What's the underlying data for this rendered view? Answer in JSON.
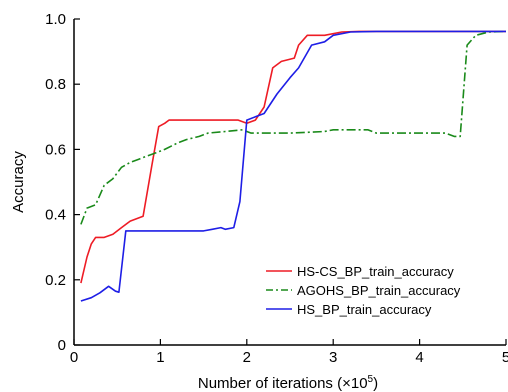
{
  "chart_data": {
    "type": "line",
    "xlabel": "Number of iterations (×10",
    "xlabel_exponent": "5",
    "xlabel_suffix": ")",
    "ylabel": "Accuracy",
    "xlim": [
      0,
      5
    ],
    "ylim": [
      0,
      1.0
    ],
    "x_ticks": [
      "0",
      "1",
      "2",
      "3",
      "4",
      "5"
    ],
    "y_ticks": [
      "0",
      "0.2",
      "0.4",
      "0.6",
      "0.8",
      "1.0"
    ],
    "grid": false,
    "legend_position": "bottom-right",
    "series": [
      {
        "name": "HS-CS_BP_train_accuracy",
        "color": "#ee1c25",
        "style": "solid",
        "points": [
          [
            0.08,
            0.19
          ],
          [
            0.15,
            0.27
          ],
          [
            0.2,
            0.31
          ],
          [
            0.25,
            0.33
          ],
          [
            0.35,
            0.33
          ],
          [
            0.45,
            0.34
          ],
          [
            0.55,
            0.36
          ],
          [
            0.65,
            0.38
          ],
          [
            0.75,
            0.39
          ],
          [
            0.8,
            0.395
          ],
          [
            0.9,
            0.55
          ],
          [
            0.98,
            0.67
          ],
          [
            1.05,
            0.68
          ],
          [
            1.1,
            0.69
          ],
          [
            1.5,
            0.69
          ],
          [
            1.9,
            0.69
          ],
          [
            2.0,
            0.68
          ],
          [
            2.1,
            0.69
          ],
          [
            2.2,
            0.73
          ],
          [
            2.3,
            0.85
          ],
          [
            2.4,
            0.87
          ],
          [
            2.55,
            0.88
          ],
          [
            2.6,
            0.92
          ],
          [
            2.7,
            0.95
          ],
          [
            2.9,
            0.95
          ],
          [
            3.1,
            0.96
          ],
          [
            3.3,
            0.962
          ],
          [
            4.0,
            0.962
          ],
          [
            5.0,
            0.962
          ]
        ]
      },
      {
        "name": "AGOHS_BP_train_accuracy",
        "color": "#1a8a1a",
        "style": "dashdot",
        "points": [
          [
            0.08,
            0.37
          ],
          [
            0.15,
            0.42
          ],
          [
            0.25,
            0.43
          ],
          [
            0.35,
            0.49
          ],
          [
            0.45,
            0.51
          ],
          [
            0.55,
            0.545
          ],
          [
            0.65,
            0.56
          ],
          [
            0.75,
            0.57
          ],
          [
            0.85,
            0.58
          ],
          [
            0.95,
            0.59
          ],
          [
            1.05,
            0.6
          ],
          [
            1.2,
            0.62
          ],
          [
            1.3,
            0.63
          ],
          [
            1.45,
            0.64
          ],
          [
            1.55,
            0.65
          ],
          [
            1.75,
            0.655
          ],
          [
            1.95,
            0.66
          ],
          [
            2.05,
            0.65
          ],
          [
            2.5,
            0.65
          ],
          [
            2.9,
            0.655
          ],
          [
            3.0,
            0.66
          ],
          [
            3.4,
            0.66
          ],
          [
            3.5,
            0.65
          ],
          [
            4.3,
            0.65
          ],
          [
            4.4,
            0.64
          ],
          [
            4.47,
            0.64
          ],
          [
            4.55,
            0.92
          ],
          [
            4.65,
            0.95
          ],
          [
            4.8,
            0.96
          ],
          [
            5.0,
            0.962
          ]
        ]
      },
      {
        "name": "HS_BP_train_accuracy",
        "color": "#1e1ee6",
        "style": "solid",
        "points": [
          [
            0.08,
            0.135
          ],
          [
            0.2,
            0.145
          ],
          [
            0.3,
            0.16
          ],
          [
            0.4,
            0.18
          ],
          [
            0.48,
            0.165
          ],
          [
            0.52,
            0.162
          ],
          [
            0.6,
            0.35
          ],
          [
            1.0,
            0.35
          ],
          [
            1.5,
            0.35
          ],
          [
            1.6,
            0.355
          ],
          [
            1.7,
            0.36
          ],
          [
            1.75,
            0.355
          ],
          [
            1.85,
            0.36
          ],
          [
            1.92,
            0.44
          ],
          [
            2.0,
            0.69
          ],
          [
            2.1,
            0.7
          ],
          [
            2.2,
            0.71
          ],
          [
            2.35,
            0.77
          ],
          [
            2.5,
            0.82
          ],
          [
            2.6,
            0.85
          ],
          [
            2.75,
            0.92
          ],
          [
            2.9,
            0.93
          ],
          [
            3.0,
            0.95
          ],
          [
            3.2,
            0.96
          ],
          [
            3.5,
            0.962
          ],
          [
            4.0,
            0.962
          ],
          [
            5.0,
            0.962
          ]
        ]
      }
    ]
  }
}
